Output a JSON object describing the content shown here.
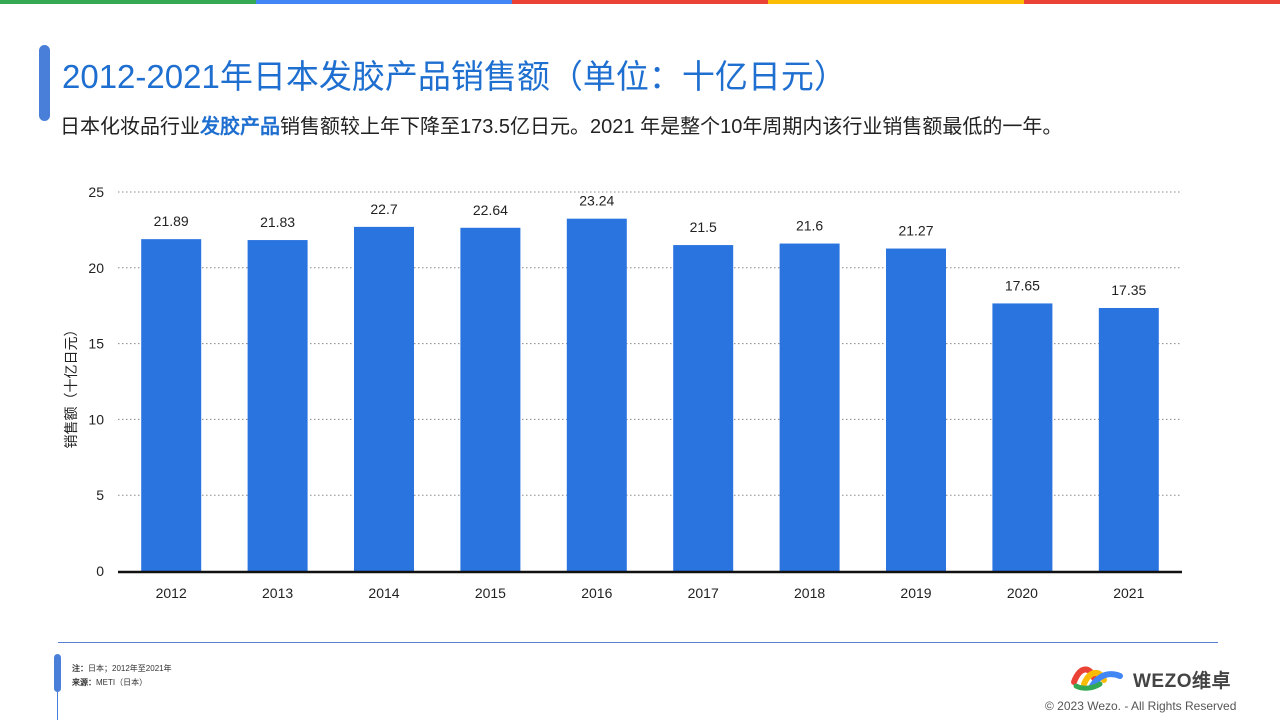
{
  "header": {
    "title": "2012-2021年日本发胶产品销售额（单位：十亿日元）",
    "subtitle_before": "日本化妆品行业",
    "subtitle_highlight": "发胶产品",
    "subtitle_after": "销售额较上年下降至173.5亿日元。2021 年是整个10年周期内该行业销售额最低的一年。",
    "accent_color": "#1e6fd0"
  },
  "top_bar_colors": [
    "#34a853",
    "#4285f4",
    "#ea4335",
    "#fbbc05",
    "#ea4335"
  ],
  "chart_data": {
    "type": "bar",
    "categories": [
      "2012",
      "2013",
      "2014",
      "2015",
      "2016",
      "2017",
      "2018",
      "2019",
      "2020",
      "2021"
    ],
    "values": [
      21.89,
      21.83,
      22.7,
      22.64,
      23.24,
      21.5,
      21.6,
      21.27,
      17.65,
      17.35
    ],
    "value_labels": [
      "21.89",
      "21.83",
      "22.7",
      "22.64",
      "23.24",
      "21.5",
      "21.6",
      "21.27",
      "17.65",
      "17.35"
    ],
    "ylabel": "销售额（十亿日元）",
    "ylim": [
      0,
      25
    ],
    "yticks": [
      "0",
      "5",
      "10",
      "15",
      "20",
      "25"
    ],
    "grid": true,
    "bar_color": "#2a74e0"
  },
  "footer": {
    "note_label": "注：",
    "note_text": "日本；2012年至2021年",
    "source_label": "来源：",
    "source_text": "METI（日本）",
    "logo_text": "WEZO维卓",
    "copyright": "© 2023 Wezo. - All Rights Reserved"
  }
}
